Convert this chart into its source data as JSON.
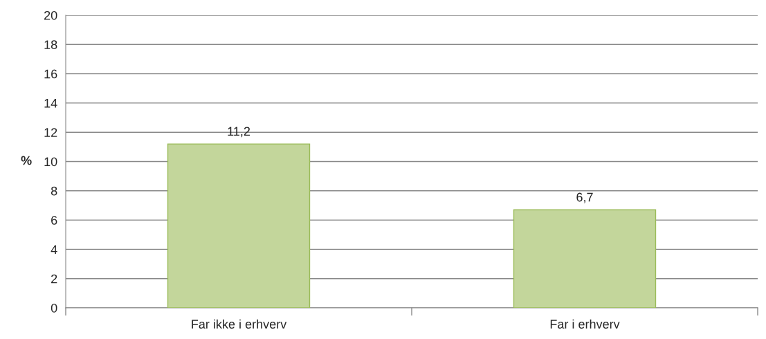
{
  "chart_data": {
    "type": "bar",
    "ylabel": "%",
    "categories": [
      "Far ikke i erhverv",
      "Far i erhverv"
    ],
    "values": [
      11.2,
      6.7
    ],
    "value_labels": [
      "11,2",
      "6,7"
    ],
    "color": "#c3d69b",
    "ylim": [
      0,
      20
    ],
    "yticks": [
      0,
      2,
      4,
      6,
      8,
      10,
      12,
      14,
      16,
      18,
      20
    ],
    "grid": "y",
    "legend": false
  }
}
